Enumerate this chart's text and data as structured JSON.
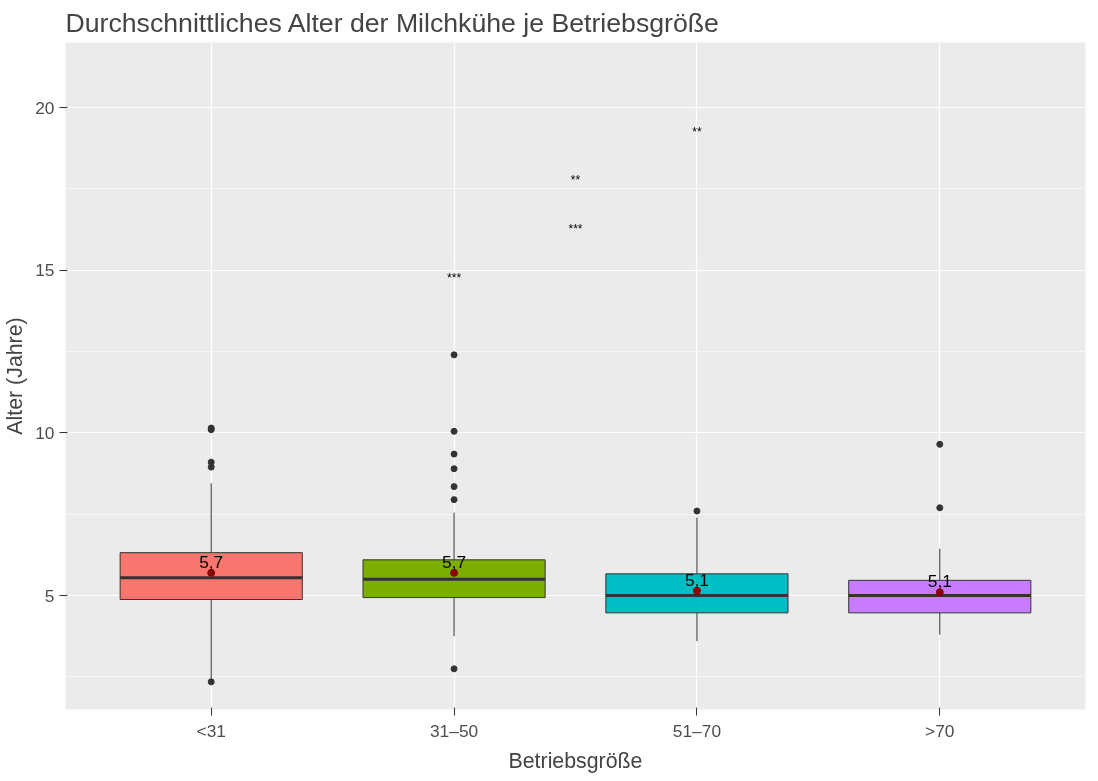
{
  "chart_data": {
    "type": "box",
    "title": "Durchschnittliches Alter der Milchkühe je Betriebsgröße",
    "xlabel": "Betriebsgröße",
    "ylabel": "Alter (Jahre)",
    "categories": [
      "<31",
      "31–50",
      "51–70",
      ">70"
    ],
    "colors": [
      "#f8766d",
      "#7cae00",
      "#00bfc4",
      "#c77cff"
    ],
    "boxes": [
      {
        "low": 2.4,
        "q1": 4.88,
        "median": 5.55,
        "q3": 6.32,
        "high": 8.45,
        "outliers": [
          2.35,
          8.95,
          9.1,
          10.1,
          10.15
        ]
      },
      {
        "low": 3.75,
        "q1": 4.94,
        "median": 5.5,
        "q3": 6.1,
        "high": 7.55,
        "outliers": [
          2.75,
          7.95,
          8.35,
          8.9,
          9.35,
          10.05,
          12.4
        ]
      },
      {
        "low": 3.6,
        "q1": 4.47,
        "median": 5.0,
        "q3": 5.67,
        "high": 7.4,
        "outliers": [
          7.6
        ]
      },
      {
        "low": 3.8,
        "q1": 4.47,
        "median": 5.0,
        "q3": 5.47,
        "high": 6.44,
        "outliers": [
          7.7,
          9.65
        ]
      }
    ],
    "series": [
      {
        "type": "scatter",
        "color": "#8b0000",
        "x": [
          "<31",
          "31–50",
          "51–70",
          ">70"
        ],
        "values": [
          5.7,
          5.7,
          5.15,
          5.1
        ],
        "value_labels": [
          "5,7",
          "5,7",
          "5,1",
          "5,1"
        ]
      }
    ],
    "annotations": [
      "**",
      "**",
      "***",
      "***"
    ],
    "ylim": [
      1.5,
      22
    ],
    "yticks": [
      5,
      10,
      15,
      20
    ],
    "grid": true
  }
}
